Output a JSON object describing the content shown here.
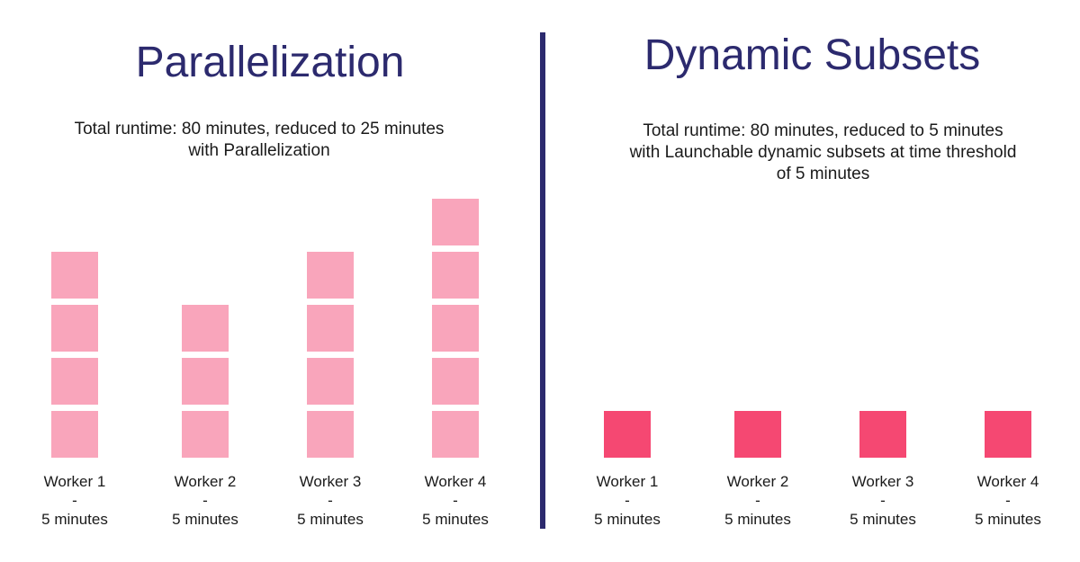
{
  "colors": {
    "title": "#2c2a6e",
    "divider": "#2c2a6e",
    "parallel_block": "#f9a5bb",
    "dynamic_block": "#f54872"
  },
  "left": {
    "title": "Parallelization",
    "subtitle_line1": "Total runtime: 80 minutes, reduced to 25 minutes",
    "subtitle_line2": "with Parallelization",
    "workers": [
      {
        "name": "Worker 1",
        "dash": "-",
        "duration": "5 minutes",
        "blocks": 4
      },
      {
        "name": "Worker 2",
        "dash": "-",
        "duration": "5 minutes",
        "blocks": 3
      },
      {
        "name": "Worker 3",
        "dash": "-",
        "duration": "5 minutes",
        "blocks": 4
      },
      {
        "name": "Worker 4",
        "dash": "-",
        "duration": "5 minutes",
        "blocks": 5
      }
    ]
  },
  "right": {
    "title": "Dynamic Subsets",
    "subtitle_line1": "Total runtime: 80 minutes, reduced to 5 minutes",
    "subtitle_line2": "with Launchable dynamic subsets at time threshold",
    "subtitle_line3": "of 5 minutes",
    "workers": [
      {
        "name": "Worker 1",
        "dash": "-",
        "duration": "5 minutes",
        "blocks": 1
      },
      {
        "name": "Worker 2",
        "dash": "-",
        "duration": "5 minutes",
        "blocks": 1
      },
      {
        "name": "Worker 3",
        "dash": "-",
        "duration": "5 minutes",
        "blocks": 1
      },
      {
        "name": "Worker 4",
        "dash": "-",
        "duration": "5 minutes",
        "blocks": 1
      }
    ]
  }
}
